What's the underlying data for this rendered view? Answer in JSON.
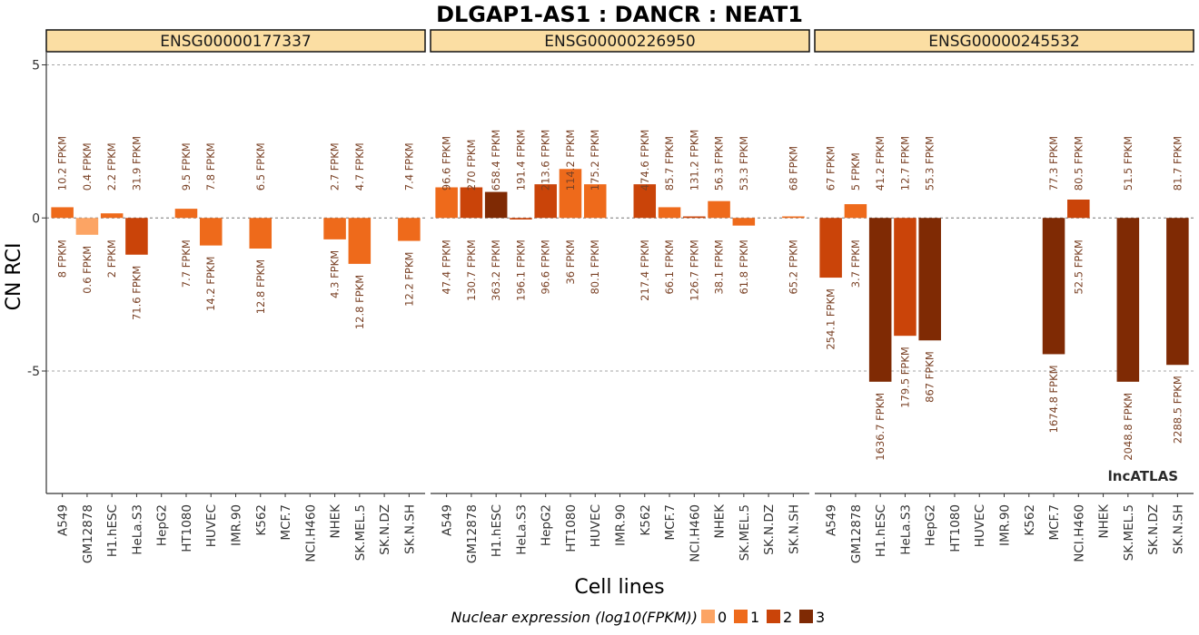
{
  "chart_data": {
    "type": "bar",
    "title": "DLGAP1-AS1 : DANCR : NEAT1",
    "xlabel": "Cell lines",
    "ylabel": "CN RCI",
    "ylim": [
      -9,
      5.4
    ],
    "yticks": [
      5,
      0,
      -5
    ],
    "ytick_labels": [
      "5",
      "0",
      "-5"
    ],
    "grid": "dashed horizontal at y ticks",
    "categories": [
      "A549",
      "GM12878",
      "H1.hESC",
      "HeLa.S3",
      "HepG2",
      "HT1080",
      "HUVEC",
      "IMR.90",
      "K562",
      "MCF.7",
      "NCI.H460",
      "NHEK",
      "SK.MEL.5",
      "SK.N.DZ",
      "SK.N.SH"
    ],
    "panels": [
      {
        "name": "ENSG00000177337",
        "values": [
          0.35,
          -0.55,
          0.15,
          -1.2,
          null,
          0.3,
          -0.9,
          null,
          -1.0,
          null,
          null,
          -0.7,
          -1.5,
          null,
          -0.75
        ],
        "levels": [
          1,
          0,
          1,
          2,
          null,
          1,
          1,
          null,
          1,
          null,
          null,
          1,
          1,
          null,
          1
        ],
        "cyto_labels": [
          "10.2 FPKM",
          "0.4 FPKM",
          "2.2 FPKM",
          "31.9 FPKM",
          "",
          "9.5 FPKM",
          "7.8 FPKM",
          "",
          "6.5 FPKM",
          "",
          "",
          "2.7 FPKM",
          "4.7 FPKM",
          "",
          "7.4 FPKM"
        ],
        "nuc_labels": [
          "8 FPKM",
          "0.6 FPKM",
          "2 FPKM",
          "71.6 FPKM",
          "",
          "7.7 FPKM",
          "14.2 FPKM",
          "",
          "12.8 FPKM",
          "",
          "",
          "4.3 FPKM",
          "12.8 FPKM",
          "",
          "12.2 FPKM"
        ]
      },
      {
        "name": "ENSG00000226950",
        "values": [
          1.0,
          1.0,
          0.85,
          -0.05,
          1.1,
          1.6,
          1.1,
          null,
          1.1,
          0.35,
          0.05,
          0.55,
          -0.25,
          null,
          0.05
        ],
        "levels": [
          1,
          2,
          3,
          2,
          2,
          1,
          1,
          null,
          2,
          1,
          2,
          1,
          1,
          null,
          1
        ],
        "cyto_labels": [
          "96.6 FPKM",
          "270 FPKM",
          "658.4 FPKM",
          "191.4 FPKM",
          "213.6 FPKM",
          "114.2 FPKM",
          "175.2 FPKM",
          "",
          "474.6 FPKM",
          "85.7 FPKM",
          "131.2 FPKM",
          "56.3 FPKM",
          "53.3 FPKM",
          "",
          "68 FPKM"
        ],
        "nuc_labels": [
          "47.4 FPKM",
          "130.7 FPKM",
          "363.2 FPKM",
          "196.1 FPKM",
          "96.6 FPKM",
          "36 FPKM",
          "80.1 FPKM",
          "",
          "217.4 FPKM",
          "66.1 FPKM",
          "126.7 FPKM",
          "38.1 FPKM",
          "61.8 FPKM",
          "",
          "65.2 FPKM"
        ]
      },
      {
        "name": "ENSG00000245532",
        "values": [
          -1.95,
          0.45,
          -5.35,
          -3.85,
          -4.0,
          null,
          null,
          null,
          null,
          -4.45,
          0.6,
          null,
          -5.35,
          null,
          -4.8
        ],
        "levels": [
          2,
          1,
          3,
          2,
          3,
          null,
          null,
          null,
          null,
          3,
          2,
          null,
          3,
          null,
          3
        ],
        "cyto_labels": [
          "67 FPKM",
          "5 FPKM",
          "41.2 FPKM",
          "12.7 FPKM",
          "55.3 FPKM",
          "",
          "",
          "",
          "",
          "77.3 FPKM",
          "80.5 FPKM",
          "",
          "51.5 FPKM",
          "",
          "81.7 FPKM"
        ],
        "nuc_labels": [
          "254.1 FPKM",
          "3.7 FPKM",
          "1636.7 FPKM",
          "179.5 FPKM",
          "867 FPKM",
          "",
          "",
          "",
          "",
          "1674.8 FPKM",
          "52.5 FPKM",
          "",
          "2048.8 FPKM",
          "",
          "2288.5 FPKM"
        ]
      }
    ],
    "legend": {
      "title": "Nuclear expression (log10(FPKM))",
      "placement": "bottom",
      "items": [
        {
          "label": "0",
          "color": "#fca464"
        },
        {
          "label": "1",
          "color": "#ee6a1b"
        },
        {
          "label": "2",
          "color": "#ca4409"
        },
        {
          "label": "3",
          "color": "#7f2a04"
        }
      ]
    },
    "colors": {
      "strip_fill": "#fbdea3",
      "label_text": "#7a4226",
      "zero_line": "#777777",
      "grid": "#888888"
    }
  },
  "watermark": "lncATLAS"
}
